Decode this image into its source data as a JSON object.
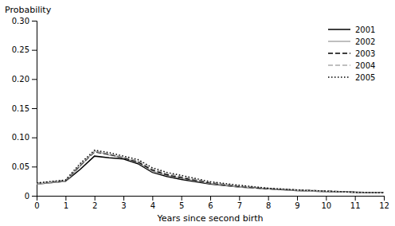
{
  "chart_data": {
    "type": "line",
    "xlabel": "Years since second birth",
    "ylabel": "Probability",
    "x": [
      0,
      1,
      1.5,
      2,
      2.5,
      3,
      3.5,
      4,
      4.5,
      5,
      6,
      7,
      8,
      9,
      10,
      11,
      12
    ],
    "xlim": [
      0,
      12
    ],
    "ylim": [
      0,
      0.3
    ],
    "xticks": [
      0,
      1,
      2,
      3,
      4,
      5,
      6,
      7,
      8,
      9,
      10,
      11,
      12
    ],
    "yticks": [
      0,
      0.05,
      {
        "value": 0.1,
        "label": "0.10"
      },
      0.15,
      {
        "value": 0.2,
        "label": "0.20"
      },
      0.25,
      {
        "value": 0.3,
        "label": "0.30"
      }
    ],
    "grid": false,
    "legend": "upper right",
    "series": [
      {
        "name": "2001",
        "color": "#000000",
        "line_style": "solid",
        "values": [
          0.02,
          0.025,
          0.045,
          0.068,
          0.065,
          0.063,
          0.055,
          0.04,
          0.033,
          0.028,
          0.02,
          0.015,
          0.012,
          0.009,
          0.007,
          0.006,
          0.005
        ]
      },
      {
        "name": "2002",
        "color": "#aaaaaa",
        "line_style": "solid",
        "values": [
          0.02,
          0.025,
          0.05,
          0.077,
          0.07,
          0.065,
          0.057,
          0.042,
          0.035,
          0.03,
          0.021,
          0.015,
          0.012,
          0.009,
          0.007,
          0.006,
          0.005
        ]
      },
      {
        "name": "2003",
        "color": "#000000",
        "line_style": "dashed",
        "values": [
          0.021,
          0.026,
          0.052,
          0.075,
          0.071,
          0.065,
          0.058,
          0.044,
          0.036,
          0.031,
          0.022,
          0.016,
          0.012,
          0.01,
          0.008,
          0.006,
          0.005
        ]
      },
      {
        "name": "2004",
        "color": "#aaaaaa",
        "line_style": "dashed",
        "values": [
          0.021,
          0.027,
          0.053,
          0.076,
          0.072,
          0.066,
          0.06,
          0.046,
          0.038,
          0.033,
          0.023,
          0.017,
          0.013,
          0.01,
          0.008,
          0.006,
          0.005
        ]
      },
      {
        "name": "2005",
        "color": "#000000",
        "line_style": "dotted",
        "values": [
          0.022,
          0.027,
          0.055,
          0.078,
          0.074,
          0.068,
          0.062,
          0.048,
          0.04,
          0.035,
          0.024,
          0.018,
          0.013,
          0.01,
          0.008,
          0.006,
          0.005
        ]
      }
    ]
  }
}
